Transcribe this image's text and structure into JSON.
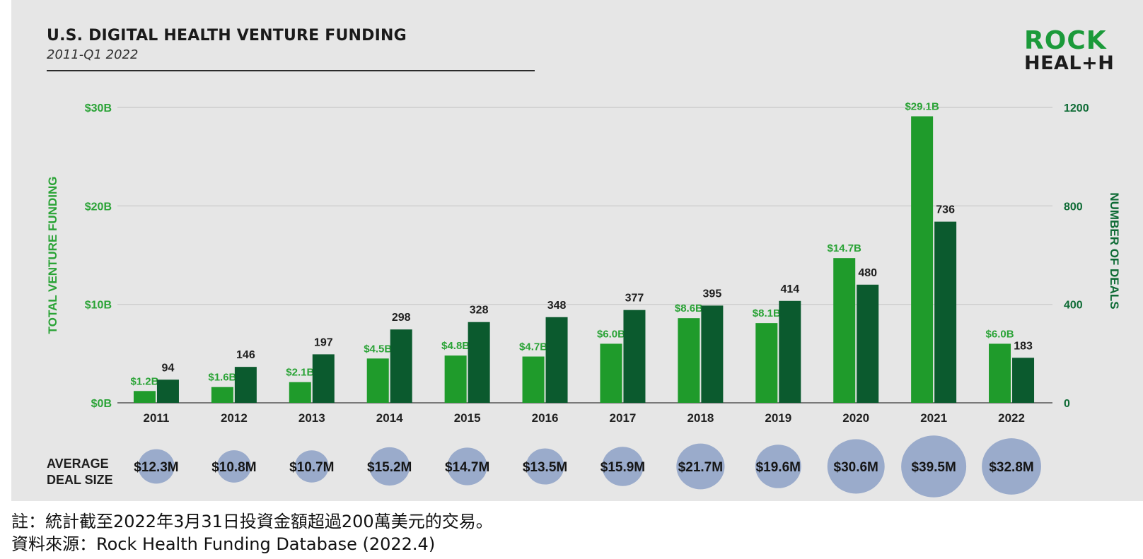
{
  "title": "U.S. DIGITAL HEALTH VENTURE FUNDING",
  "subtitle": "2011-Q1 2022",
  "logo": {
    "line1": "ROCK",
    "line2": "HEAL+H"
  },
  "footnotes": {
    "note": "註：統計截至2022年3月31日投資金額超過200萬美元的交易。",
    "source": "資料來源：Rock Health Funding Database (2022.4)"
  },
  "colors": {
    "funding": "#1f9b2b",
    "deals": "#0b5a2e",
    "bubble": "#9aabcb",
    "axis_left_text": "#2aa336",
    "axis_right_text": "#0e6b35",
    "grid": "#c8c8c8"
  },
  "chart_data": {
    "type": "bar",
    "categories": [
      "2011",
      "2012",
      "2013",
      "2014",
      "2015",
      "2016",
      "2017",
      "2018",
      "2019",
      "2020",
      "2021",
      "2022"
    ],
    "series": [
      {
        "name": "",
        "axis": "left",
        "values": [
          1.2,
          1.6,
          2.1,
          4.5,
          4.8,
          4.7,
          6.0,
          8.6,
          8.1,
          14.7,
          29.1,
          6.0
        ],
        "labels": [
          "$1.2B",
          "$1.6B",
          "$2.1B",
          "$4.5B",
          "$4.8B",
          "$4.7B",
          "$6.0B",
          "$8.6B",
          "$8.1B",
          "$14.7B",
          "$29.1B",
          "$6.0B"
        ]
      },
      {
        "name": "",
        "axis": "right",
        "values": [
          94,
          146,
          197,
          298,
          328,
          348,
          377,
          395,
          414,
          480,
          736,
          183
        ],
        "labels": [
          "94",
          "146",
          "197",
          "298",
          "328",
          "348",
          "377",
          "395",
          "414",
          "480",
          "736",
          "183"
        ]
      }
    ],
    "ylabel": "TOTAL VENTURE FUNDING",
    "ylim": [
      0,
      30
    ],
    "yticks": [
      0,
      10,
      20,
      30
    ],
    "ytick_labels": [
      "$0B",
      "$10B",
      "$20B",
      "$30B"
    ],
    "y2label": "NUMBER OF DEALS",
    "y2lim": [
      0,
      1200
    ],
    "y2ticks": [
      0,
      400,
      800,
      1200
    ],
    "y2tick_labels": [
      "0",
      "400",
      "800",
      "1200"
    ],
    "grid": true,
    "legend": "none",
    "average_deal_size": {
      "label_line1": "AVERAGE",
      "label_line2": "DEAL SIZE",
      "values": [
        12.3,
        10.8,
        10.7,
        15.2,
        14.7,
        13.5,
        15.9,
        21.7,
        19.6,
        30.6,
        39.5,
        32.8
      ],
      "labels": [
        "$12.3M",
        "$10.8M",
        "$10.7M",
        "$15.2M",
        "$14.7M",
        "$13.5M",
        "$15.9M",
        "$21.7M",
        "$19.6M",
        "$30.6M",
        "$39.5M",
        "$32.8M"
      ]
    }
  }
}
